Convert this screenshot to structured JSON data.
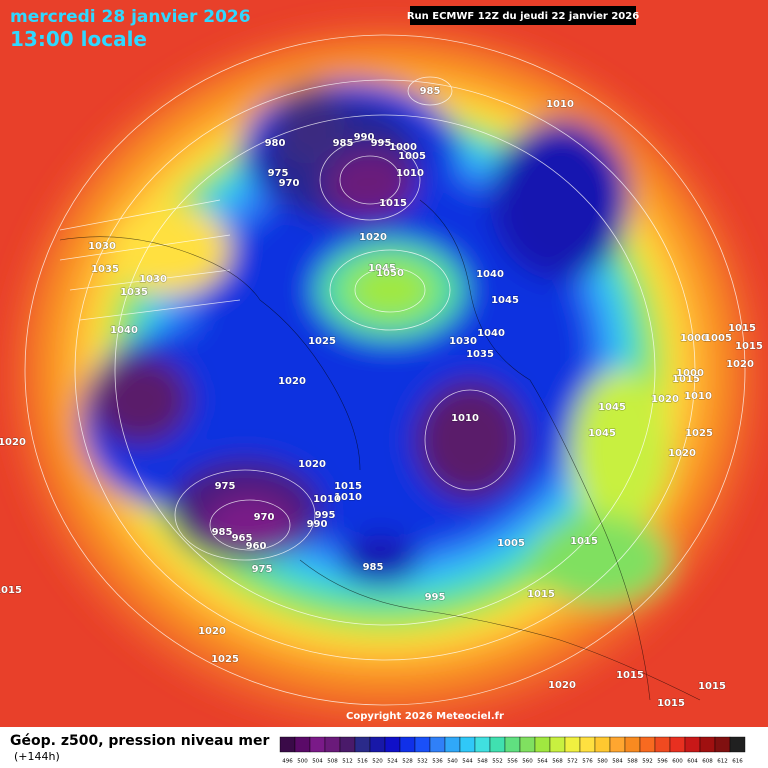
{
  "header": {
    "title": "mercredi 28 janvier 2026",
    "subtitle": "13:00 locale",
    "run": "Run ECMWF 12Z du jeudi 22 janvier 2026"
  },
  "copyright": "Copyright 2026 Meteociel.fr",
  "footer": {
    "title": "Géop. z500, pression niveau mer",
    "subtitle": "(+144h)"
  },
  "legend": {
    "values": [
      496,
      500,
      504,
      508,
      512,
      516,
      520,
      524,
      528,
      532,
      536,
      540,
      544,
      548,
      552,
      556,
      560,
      564,
      568,
      572,
      576,
      580,
      584,
      588,
      592,
      596,
      600,
      604,
      608,
      612,
      616
    ],
    "colors": [
      "#3a0a48",
      "#5a0a68",
      "#7a1a88",
      "#6a1a7a",
      "#4a1a6a",
      "#2a2a8a",
      "#1818a8",
      "#1010c8",
      "#1030e8",
      "#1a50f8",
      "#3080f8",
      "#30a8f8",
      "#30c8f8",
      "#40e0e0",
      "#40e0b0",
      "#60e080",
      "#80e060",
      "#a0e840",
      "#c8f040",
      "#f0f040",
      "#ffe040",
      "#ffc830",
      "#ffa630",
      "#f88a20",
      "#f86a20",
      "#f04a20",
      "#e83020",
      "#c81818",
      "#a01010",
      "#801010",
      "#202020"
    ]
  },
  "isobar_labels": [
    985,
    1010,
    980,
    985,
    990,
    995,
    1000,
    1005,
    975,
    970,
    1010,
    1015,
    1020,
    1030,
    1035,
    1030,
    1045,
    1050,
    1040,
    1035,
    1045,
    1040,
    1025,
    1040,
    1030,
    1035,
    1000,
    1005,
    1015,
    1015,
    1020,
    1020,
    1015,
    1000,
    1010,
    1020,
    1045,
    1010,
    1045,
    1025,
    1020,
    1020,
    1020,
    975,
    1015,
    1010,
    1010,
    995,
    970,
    990,
    985,
    965,
    960,
    1005,
    1015,
    975,
    985,
    1015,
    995,
    1015,
    1020,
    1025,
    1020,
    1015,
    1015,
    1015
  ]
}
